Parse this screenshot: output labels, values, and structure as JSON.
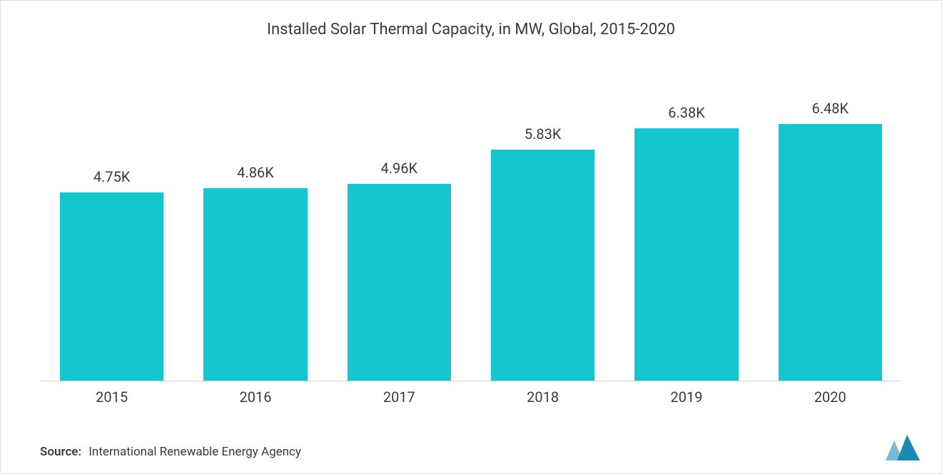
{
  "chart": {
    "type": "bar",
    "title": "Installed Solar Thermal Capacity, in MW, Global, 2015-2020",
    "title_fontsize": 22,
    "title_color": "#3a3a3a",
    "categories": [
      "2015",
      "2016",
      "2017",
      "2018",
      "2019",
      "2020"
    ],
    "value_labels": [
      "4.75K",
      "4.86K",
      "4.96K",
      "5.83K",
      "6.38K",
      "6.48K"
    ],
    "values": [
      4750,
      4860,
      4960,
      5830,
      6380,
      6480
    ],
    "ylim_max": 6480,
    "bar_color": "#14c7ce",
    "value_label_fontsize": 20,
    "value_label_color": "#3a3a3a",
    "xaxis_label_fontsize": 20,
    "xaxis_label_color": "#3a3a3a",
    "xaxis_line_color": "#d0d0d0",
    "background_color": "#ffffff"
  },
  "footer": {
    "source_label": "Source:",
    "source_text": "International Renewable Energy Agency",
    "fontsize": 17,
    "color": "#3a3a3a"
  },
  "logo": {
    "primary_color": "#1e88b5",
    "secondary_color": "#7ab8d4"
  }
}
